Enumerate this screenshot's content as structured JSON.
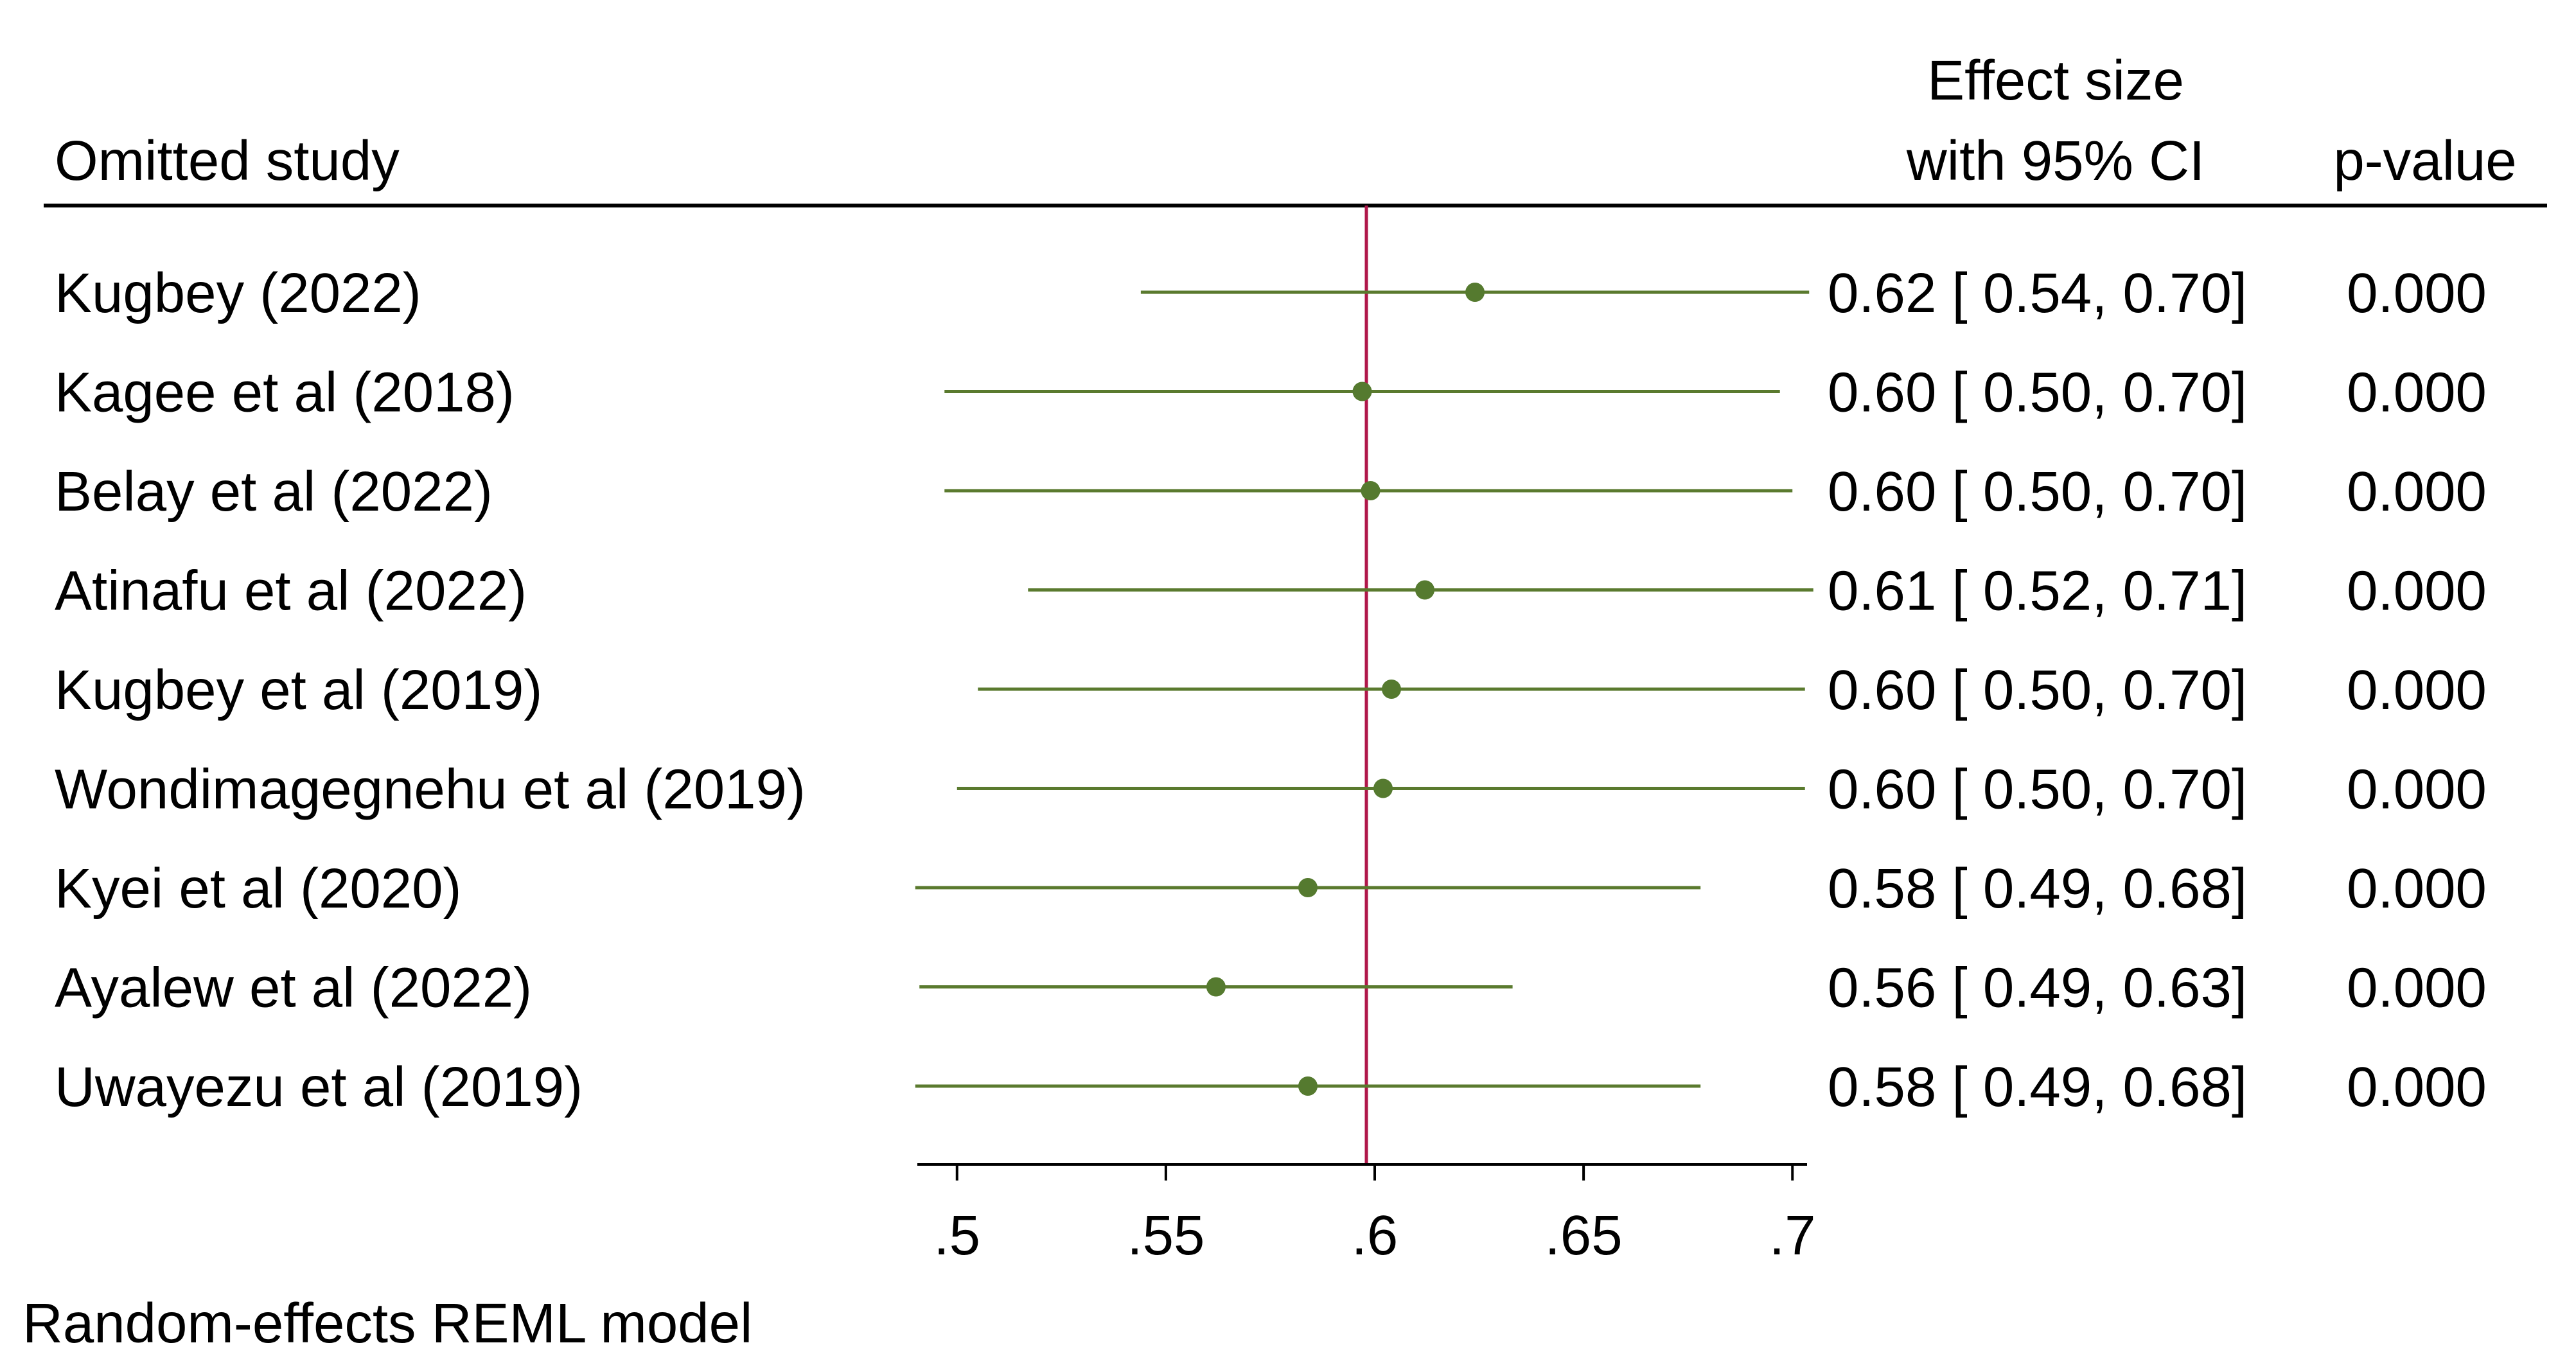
{
  "header": {
    "study_col": "Omitted study",
    "effect_line1": "Effect size",
    "effect_line2": "with 95% CI",
    "pvalue_col": "p-value"
  },
  "footer": {
    "model_note": "Random-effects REML model"
  },
  "chart_data": {
    "type": "forest",
    "title": "",
    "xlabel": "",
    "ylabel": "",
    "xlim": [
      0.4905,
      0.7035
    ],
    "xticks": [
      0.5,
      0.55,
      0.6,
      0.65,
      0.7
    ],
    "xtick_labels": [
      ".5",
      ".55",
      ".6",
      ".65",
      ".7"
    ],
    "reference_line": 0.598,
    "colors": {
      "ci_line": "#5a7a2e",
      "point": "#557a2f",
      "reference_line": "#b0174a",
      "axis": "#000000"
    },
    "rows": [
      {
        "study": "Kugbey (2022)",
        "effect": 0.624,
        "lower": 0.544,
        "upper": 0.704,
        "effect_text": "0.62",
        "lower_text": "0.54",
        "upper_text": "0.70",
        "p_value": "0.000"
      },
      {
        "study": "Kagee et al (2018)",
        "effect": 0.597,
        "lower": 0.497,
        "upper": 0.697,
        "effect_text": "0.60",
        "lower_text": "0.50",
        "upper_text": "0.70",
        "p_value": "0.000"
      },
      {
        "study": "Belay et al (2022)",
        "effect": 0.599,
        "lower": 0.497,
        "upper": 0.7,
        "effect_text": "0.60",
        "lower_text": "0.50",
        "upper_text": "0.70",
        "p_value": "0.000"
      },
      {
        "study": "Atinafu et al (2022)",
        "effect": 0.612,
        "lower": 0.517,
        "upper": 0.705,
        "effect_text": "0.61",
        "lower_text": "0.52",
        "upper_text": "0.71",
        "p_value": "0.000"
      },
      {
        "study": "Kugbey et al (2019)",
        "effect": 0.604,
        "lower": 0.505,
        "upper": 0.703,
        "effect_text": "0.60",
        "lower_text": "0.50",
        "upper_text": "0.70",
        "p_value": "0.000"
      },
      {
        "study": "Wondimagegnehu et al (2019)",
        "effect": 0.602,
        "lower": 0.5,
        "upper": 0.703,
        "effect_text": "0.60",
        "lower_text": "0.50",
        "upper_text": "0.70",
        "p_value": "0.000"
      },
      {
        "study": "Kyei et al (2020)",
        "effect": 0.584,
        "lower": 0.49,
        "upper": 0.678,
        "effect_text": "0.58",
        "lower_text": "0.49",
        "upper_text": "0.68",
        "p_value": "0.000"
      },
      {
        "study": "Ayalew et al (2022)",
        "effect": 0.562,
        "lower": 0.491,
        "upper": 0.633,
        "effect_text": "0.56",
        "lower_text": "0.49",
        "upper_text": "0.63",
        "p_value": "0.000"
      },
      {
        "study": "Uwayezu et al (2019)",
        "effect": 0.584,
        "lower": 0.49,
        "upper": 0.678,
        "effect_text": "0.58",
        "lower_text": "0.49",
        "upper_text": "0.68",
        "p_value": "0.000"
      }
    ]
  }
}
